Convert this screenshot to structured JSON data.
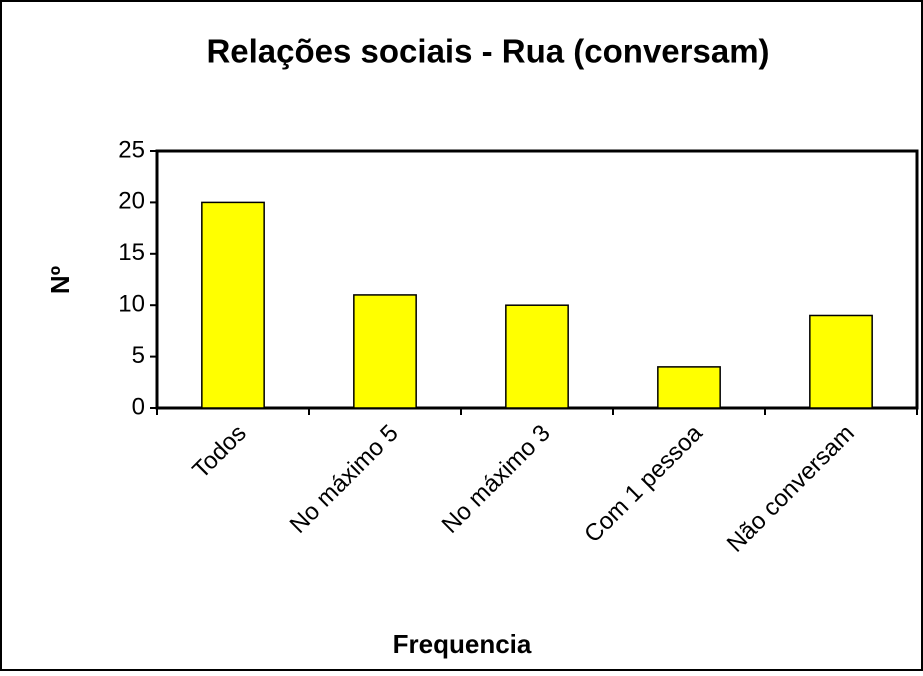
{
  "chart_data": {
    "type": "bar",
    "title": "Relações sociais - Rua (conversam)",
    "x_label": "Frequencia",
    "y_label": "Nº",
    "categories": [
      "Todos",
      "No máximo 5",
      "No máximo 3",
      "Com 1 pessoa",
      "Não conversam"
    ],
    "values": [
      20,
      11,
      10,
      4,
      9
    ],
    "color": "#ffff00",
    "ylim": [
      0,
      25
    ],
    "yticks": [
      0,
      5,
      10,
      15,
      20,
      25
    ]
  }
}
